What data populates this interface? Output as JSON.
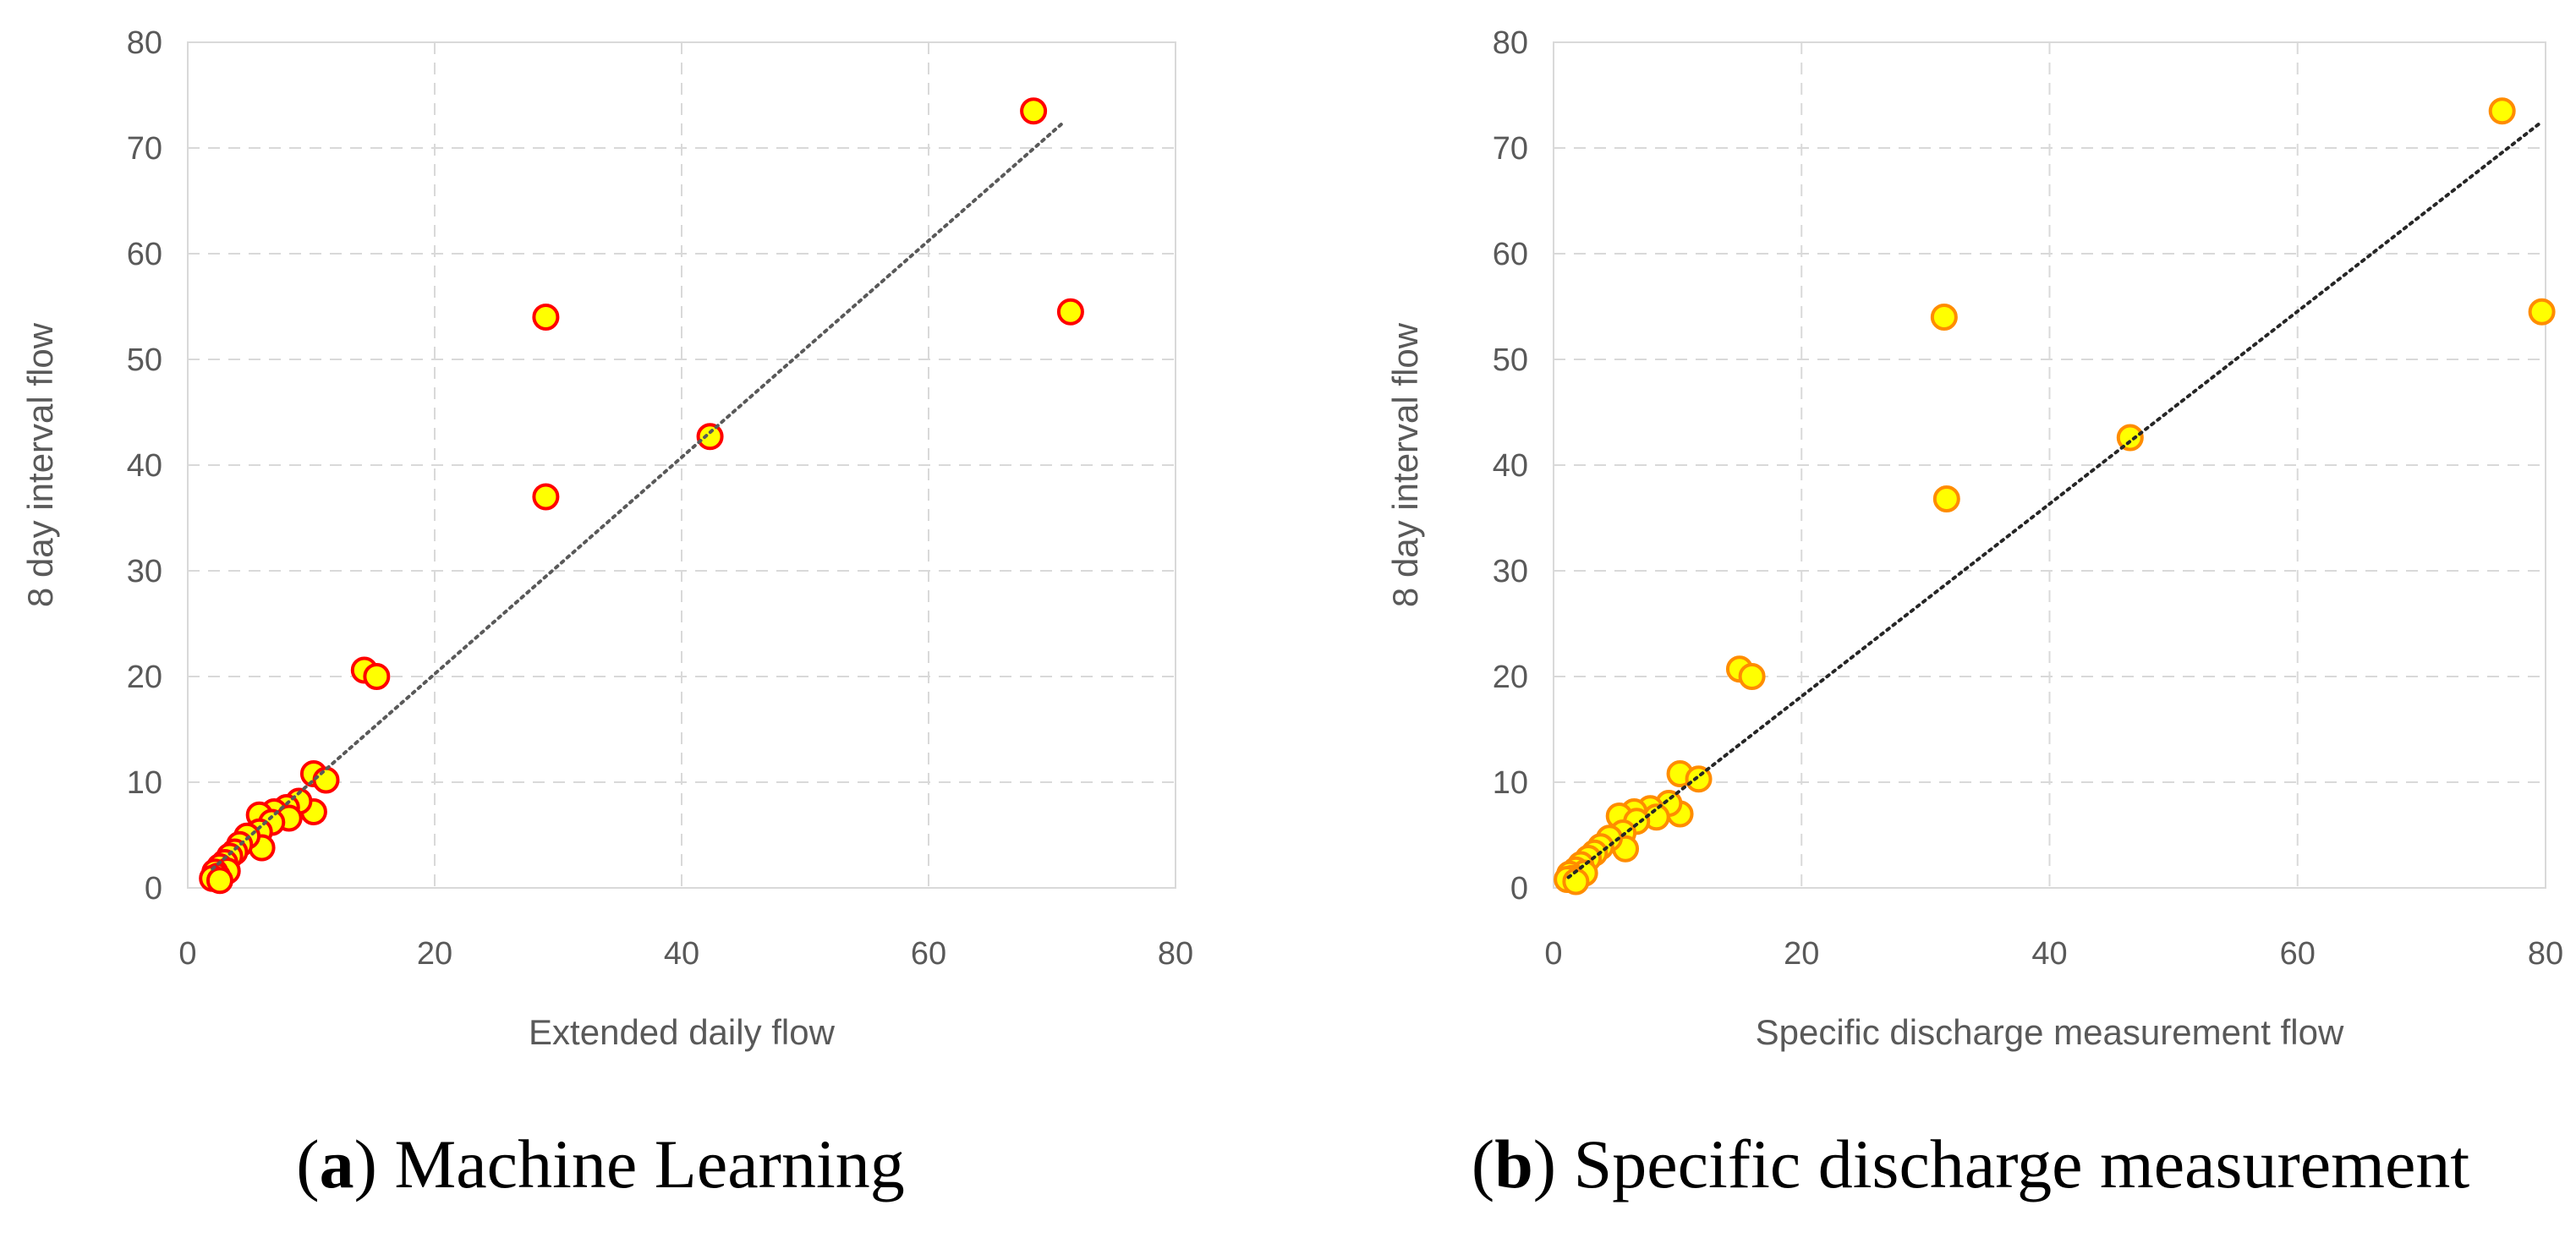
{
  "chart_data": [
    {
      "type": "scatter",
      "id": "a",
      "title": "",
      "xlabel": "Extended daily flow",
      "ylabel": "8 day  interval flow",
      "xlim": [
        0,
        80
      ],
      "ylim": [
        0,
        80
      ],
      "xticks": [
        0,
        20,
        40,
        60,
        80
      ],
      "yticks": [
        0,
        10,
        20,
        30,
        40,
        50,
        60,
        70,
        80
      ],
      "grid": true,
      "marker": {
        "fill": "#FFFF00",
        "edge": "#FF0000"
      },
      "trendline": {
        "style": "dotted",
        "color": "#595959",
        "from": [
          2,
          1.8
        ],
        "to": [
          71,
          72.5
        ]
      },
      "points": [
        {
          "x": 68.5,
          "y": 73.5
        },
        {
          "x": 71.5,
          "y": 54.5
        },
        {
          "x": 29,
          "y": 54
        },
        {
          "x": 29,
          "y": 37
        },
        {
          "x": 42.3,
          "y": 42.7
        },
        {
          "x": 14.3,
          "y": 20.6
        },
        {
          "x": 15.3,
          "y": 20.0
        },
        {
          "x": 10.2,
          "y": 10.8
        },
        {
          "x": 11.2,
          "y": 10.2
        },
        {
          "x": 10.2,
          "y": 7.2
        },
        {
          "x": 9.0,
          "y": 8.2
        },
        {
          "x": 8.0,
          "y": 7.6
        },
        {
          "x": 7.0,
          "y": 7.2
        },
        {
          "x": 8.2,
          "y": 6.6
        },
        {
          "x": 5.8,
          "y": 6.9
        },
        {
          "x": 6.8,
          "y": 6.2
        },
        {
          "x": 5.8,
          "y": 5.3
        },
        {
          "x": 6.0,
          "y": 3.8
        },
        {
          "x": 4.8,
          "y": 4.9
        },
        {
          "x": 4.2,
          "y": 4.1
        },
        {
          "x": 3.8,
          "y": 3.4
        },
        {
          "x": 3.4,
          "y": 3.0
        },
        {
          "x": 3.0,
          "y": 2.4
        },
        {
          "x": 2.6,
          "y": 2.0
        },
        {
          "x": 3.2,
          "y": 1.6
        },
        {
          "x": 2.2,
          "y": 1.5
        },
        {
          "x": 2.4,
          "y": 1.1
        },
        {
          "x": 2.0,
          "y": 0.9
        },
        {
          "x": 2.6,
          "y": 0.7
        }
      ]
    },
    {
      "type": "scatter",
      "id": "b",
      "title": "",
      "xlabel": "Specific discharge measurement flow",
      "ylabel": "8 day  interval flow",
      "xlim": [
        0,
        80
      ],
      "ylim": [
        0,
        80
      ],
      "xticks": [
        0,
        20,
        40,
        60,
        80
      ],
      "yticks": [
        0,
        10,
        20,
        30,
        40,
        50,
        60,
        70,
        80
      ],
      "grid": true,
      "marker": {
        "fill": "#FFFF00",
        "edge": "#FF8C00"
      },
      "trendline": {
        "style": "dotted",
        "color": "#262626",
        "from": [
          1.2,
          1.0
        ],
        "to": [
          79.5,
          72.3
        ]
      },
      "points": [
        {
          "x": 76.5,
          "y": 73.5
        },
        {
          "x": 79.7,
          "y": 54.5
        },
        {
          "x": 31.5,
          "y": 54
        },
        {
          "x": 31.7,
          "y": 36.8
        },
        {
          "x": 46.5,
          "y": 42.6
        },
        {
          "x": 15.0,
          "y": 20.7
        },
        {
          "x": 16.0,
          "y": 20.0
        },
        {
          "x": 10.2,
          "y": 10.8
        },
        {
          "x": 11.7,
          "y": 10.3
        },
        {
          "x": 10.2,
          "y": 7.0
        },
        {
          "x": 9.3,
          "y": 8.0
        },
        {
          "x": 7.8,
          "y": 7.5
        },
        {
          "x": 6.5,
          "y": 7.2
        },
        {
          "x": 8.3,
          "y": 6.7
        },
        {
          "x": 5.3,
          "y": 6.8
        },
        {
          "x": 6.7,
          "y": 6.3
        },
        {
          "x": 5.6,
          "y": 5.2
        },
        {
          "x": 5.8,
          "y": 3.7
        },
        {
          "x": 4.5,
          "y": 4.7
        },
        {
          "x": 3.8,
          "y": 3.9
        },
        {
          "x": 3.3,
          "y": 3.3
        },
        {
          "x": 2.8,
          "y": 2.8
        },
        {
          "x": 2.2,
          "y": 2.2
        },
        {
          "x": 1.8,
          "y": 1.7
        },
        {
          "x": 2.5,
          "y": 1.4
        },
        {
          "x": 1.3,
          "y": 1.3
        },
        {
          "x": 1.5,
          "y": 0.9
        },
        {
          "x": 1.1,
          "y": 0.8
        },
        {
          "x": 1.8,
          "y": 0.6
        }
      ]
    }
  ],
  "captions": {
    "a": {
      "letter": "a",
      "text": " Machine Learning"
    },
    "b": {
      "letter": "b",
      "text": " Specific discharge measurement"
    }
  }
}
